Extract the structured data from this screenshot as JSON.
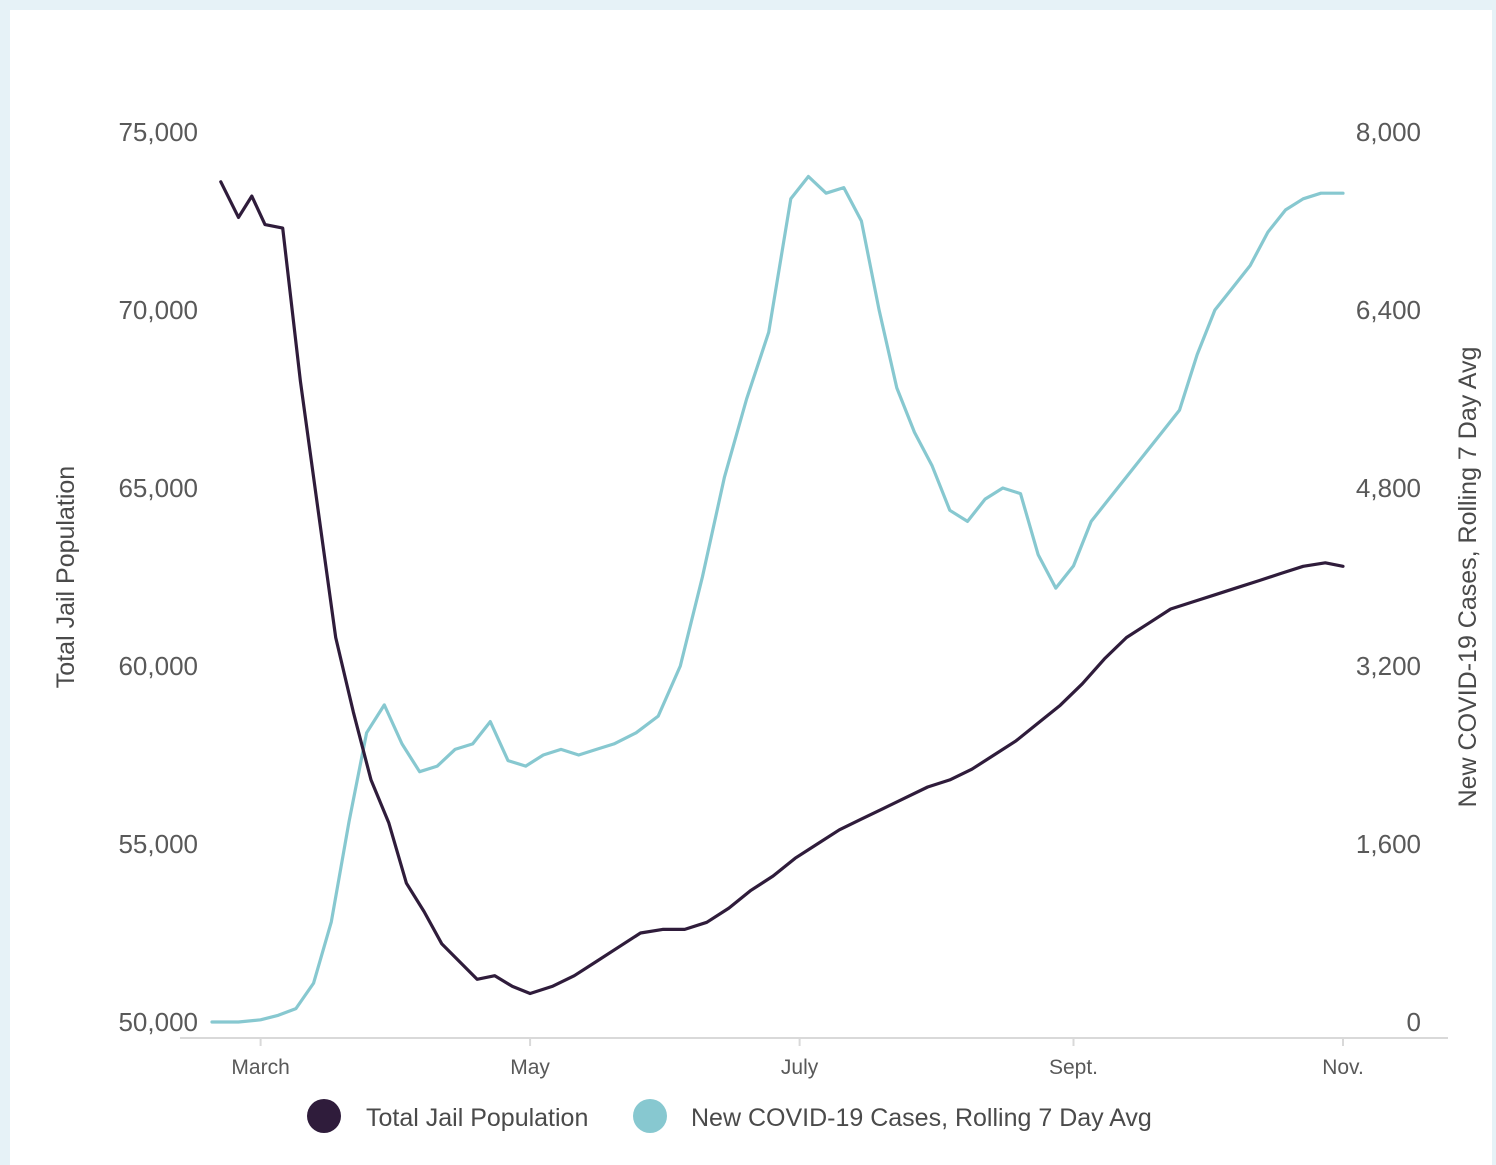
{
  "colors": {
    "jail": "#2f1c3b",
    "covid": "#87c8d0",
    "axis": "#d9d9d9",
    "text": "#595959",
    "background": "#e6f2f7"
  },
  "chart_data": {
    "type": "line",
    "x_range": [
      "Feb 18",
      "Nov 1"
    ],
    "xticks": [
      "March",
      "May",
      "July",
      "Sept.",
      "Nov."
    ],
    "y_left": {
      "label": "Total Jail Population",
      "range": [
        50000,
        75000
      ],
      "ticks": [
        "50,000",
        "55,000",
        "60,000",
        "65,000",
        "70,000",
        "75,000"
      ]
    },
    "y_right": {
      "label": "New COVID-19 Cases, Rolling 7 Day Avg",
      "range": [
        0,
        8000
      ],
      "ticks": [
        "0",
        "1,600",
        "3,200",
        "4,800",
        "6,400",
        "8,000"
      ]
    },
    "grid": false,
    "legend_position": "bottom",
    "series": [
      {
        "name": "Total Jail Population",
        "axis": "left",
        "color": "#2f1c3b",
        "x": [
          "Feb 20",
          "Feb 24",
          "Feb 27",
          "Mar 2",
          "Mar 6",
          "Mar 10",
          "Mar 14",
          "Mar 18",
          "Mar 22",
          "Mar 26",
          "Mar 30",
          "Apr 3",
          "Apr 7",
          "Apr 11",
          "Apr 15",
          "Apr 19",
          "Apr 23",
          "Apr 27",
          "May 1",
          "May 6",
          "May 11",
          "May 16",
          "May 21",
          "May 26",
          "May 31",
          "Jun 5",
          "Jun 10",
          "Jun 15",
          "Jun 20",
          "Jun 25",
          "Jun 30",
          "Jul 5",
          "Jul 10",
          "Jul 15",
          "Jul 20",
          "Jul 25",
          "Jul 30",
          "Aug 4",
          "Aug 9",
          "Aug 14",
          "Aug 19",
          "Aug 24",
          "Aug 29",
          "Sep 3",
          "Sep 8",
          "Sep 13",
          "Sep 18",
          "Sep 23",
          "Sep 28",
          "Oct 3",
          "Oct 8",
          "Oct 13",
          "Oct 18",
          "Oct 23",
          "Oct 28",
          "Nov 1"
        ],
        "values": [
          73600,
          72600,
          73200,
          72400,
          72300,
          68000,
          64400,
          60800,
          58700,
          56800,
          55600,
          53900,
          53100,
          52200,
          51700,
          51200,
          51300,
          51000,
          50800,
          51000,
          51300,
          51700,
          52100,
          52500,
          52600,
          52600,
          52800,
          53200,
          53700,
          54100,
          54600,
          55000,
          55400,
          55700,
          56000,
          56300,
          56600,
          56800,
          57100,
          57500,
          57900,
          58400,
          58900,
          59500,
          60200,
          60800,
          61200,
          61600,
          61800,
          62000,
          62200,
          62400,
          62600,
          62800,
          62900,
          62800
        ]
      },
      {
        "name": "New COVID-19 Cases, Rolling 7 Day Avg",
        "axis": "right",
        "color": "#87c8d0",
        "x": [
          "Feb 18",
          "Feb 24",
          "Mar 1",
          "Mar 5",
          "Mar 9",
          "Mar 13",
          "Mar 17",
          "Mar 21",
          "Mar 25",
          "Mar 29",
          "Apr 2",
          "Apr 6",
          "Apr 10",
          "Apr 14",
          "Apr 18",
          "Apr 22",
          "Apr 26",
          "Apr 30",
          "May 4",
          "May 8",
          "May 12",
          "May 16",
          "May 20",
          "May 25",
          "May 30",
          "Jun 4",
          "Jun 9",
          "Jun 14",
          "Jun 19",
          "Jun 24",
          "Jun 29",
          "Jul 3",
          "Jul 7",
          "Jul 11",
          "Jul 15",
          "Jul 19",
          "Jul 23",
          "Jul 27",
          "Jul 31",
          "Aug 4",
          "Aug 8",
          "Aug 12",
          "Aug 16",
          "Aug 20",
          "Aug 24",
          "Aug 28",
          "Sep 1",
          "Sep 5",
          "Sep 9",
          "Sep 13",
          "Sep 17",
          "Sep 21",
          "Sep 25",
          "Sep 29",
          "Oct 3",
          "Oct 7",
          "Oct 11",
          "Oct 15",
          "Oct 19",
          "Oct 23",
          "Oct 27",
          "Nov 1"
        ],
        "values": [
          0,
          0,
          20,
          60,
          120,
          350,
          900,
          1800,
          2600,
          2850,
          2500,
          2250,
          2300,
          2450,
          2500,
          2700,
          2350,
          2300,
          2400,
          2450,
          2400,
          2450,
          2500,
          2600,
          2750,
          3200,
          4000,
          4900,
          5600,
          6200,
          7400,
          7600,
          7450,
          7500,
          7200,
          6400,
          5700,
          5300,
          5000,
          4600,
          4500,
          4700,
          4800,
          4750,
          4200,
          3900,
          4100,
          4500,
          4700,
          4900,
          5100,
          5300,
          5500,
          6000,
          6400,
          6600,
          6800,
          7100,
          7300,
          7400,
          7450,
          7450
        ]
      }
    ]
  },
  "legend": {
    "jail": "Total Jail Population",
    "covid": "New COVID-19 Cases, Rolling 7 Day Avg"
  }
}
